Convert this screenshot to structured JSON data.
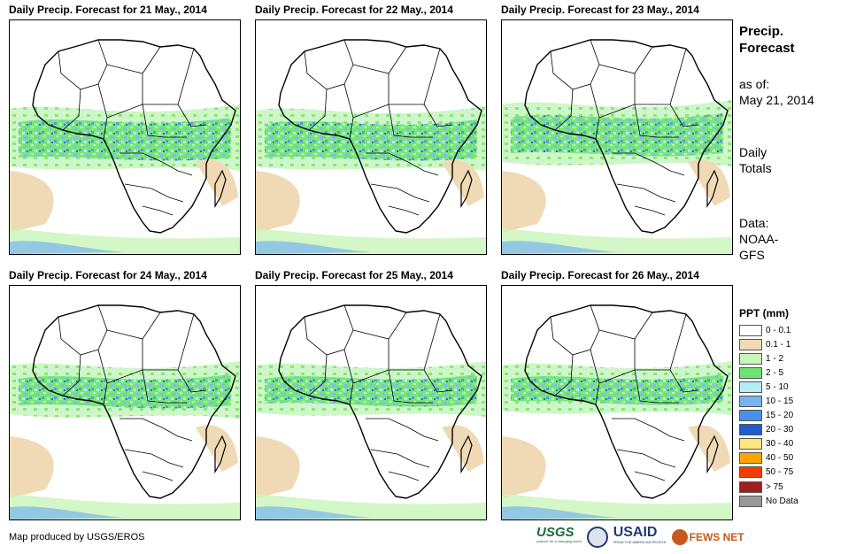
{
  "panels": [
    {
      "title": "Daily Precip. Forecast for 21 May., 2014"
    },
    {
      "title": "Daily Precip. Forecast for 22 May., 2014"
    },
    {
      "title": "Daily Precip. Forecast for 23 May., 2014"
    },
    {
      "title": "Daily Precip. Forecast for 24 May., 2014"
    },
    {
      "title": "Daily Precip. Forecast for 25 May., 2014"
    },
    {
      "title": "Daily Precip. Forecast for 26 May., 2014"
    }
  ],
  "side": {
    "heading": "Precip.",
    "heading2": "Forecast",
    "asof": "as of:",
    "date": "May 21, 2014",
    "totals1": "Daily",
    "totals2": "Totals",
    "data1": "Data:",
    "data2": "NOAA-",
    "data3": "GFS"
  },
  "legend": {
    "title": "PPT (mm)",
    "items": [
      {
        "label": "0 - 0.1",
        "color": "#ffffff"
      },
      {
        "label": "0.1 - 1",
        "color": "#f0d9b5"
      },
      {
        "label": "1 - 2",
        "color": "#c8f5b8"
      },
      {
        "label": "2 - 5",
        "color": "#6ee46e"
      },
      {
        "label": "5 - 10",
        "color": "#b4ecf5"
      },
      {
        "label": "10 - 15",
        "color": "#78b4f0"
      },
      {
        "label": "15 - 20",
        "color": "#4690ea"
      },
      {
        "label": "20 - 30",
        "color": "#1e5ad2"
      },
      {
        "label": "30 - 40",
        "color": "#ffe682"
      },
      {
        "label": "40 - 50",
        "color": "#ffa500"
      },
      {
        "label": "50 - 75",
        "color": "#f53c00"
      },
      {
        "label": "> 75",
        "color": "#a01e1e"
      },
      {
        "label": "No Data",
        "color": "#999999"
      }
    ]
  },
  "footer": "Map produced by USGS/EROS",
  "logos": {
    "usgs": "USGS",
    "usgs_tag": "science for a changing world",
    "usaid": "USAID",
    "usaid_tag": "FROM THE AMERICAN PEOPLE",
    "fews": "FEWS NET"
  }
}
